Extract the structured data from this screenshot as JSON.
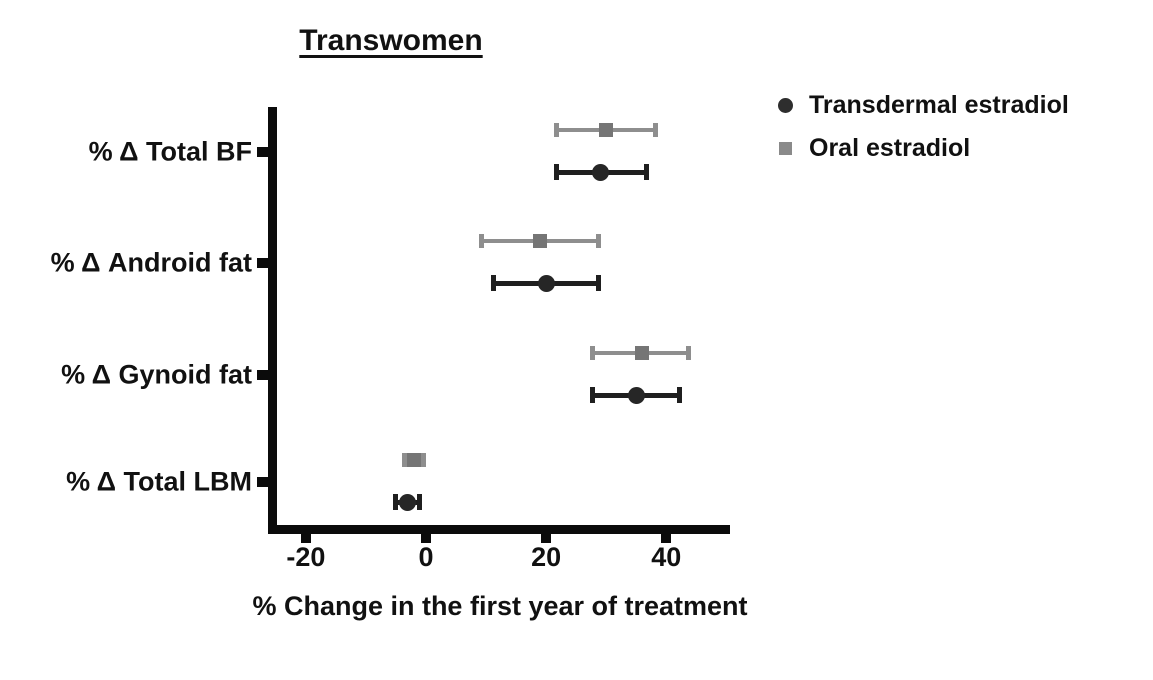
{
  "title": "Transwomen",
  "legend": [
    {
      "label": "Transdermal estradiol",
      "marker": "circle",
      "color": "#2e2e2e"
    },
    {
      "label": "Oral estradiol",
      "marker": "square",
      "color": "#8a8a8a"
    }
  ],
  "chart_data": {
    "type": "scatter",
    "subtype": "horizontal-dot-plot-with-error-bars",
    "title": "Transwomen",
    "xlabel": "% Change in the first year of treatment",
    "categories": [
      "% Δ Total BF",
      "% Δ Android fat",
      "% Δ Gynoid fat",
      "% Δ Total LBM"
    ],
    "xticks": [
      "-20",
      "0",
      "20",
      "40"
    ],
    "xtick_values": [
      -20,
      0,
      20,
      40
    ],
    "xlim": [
      -26.3,
      50.6
    ],
    "grid": false,
    "legend_position": "top-right",
    "series": [
      {
        "name": "Transdermal estradiol",
        "marker": "circle",
        "marker_color": "#262626",
        "line_color": "#1f1f1f",
        "values": [
          29,
          20,
          35,
          -3
        ],
        "ci_low": [
          22,
          11.5,
          28,
          -4.8
        ],
        "ci_high": [
          36.5,
          28.5,
          42,
          -1.3
        ]
      },
      {
        "name": "Oral estradiol",
        "marker": "square",
        "marker_color": "#757575",
        "line_color": "#8e8e8e",
        "values": [
          30,
          19,
          36,
          -2
        ],
        "ci_low": [
          22,
          9.5,
          28,
          -3.4
        ],
        "ci_high": [
          38,
          28.5,
          43.5,
          -0.6
        ]
      }
    ]
  }
}
